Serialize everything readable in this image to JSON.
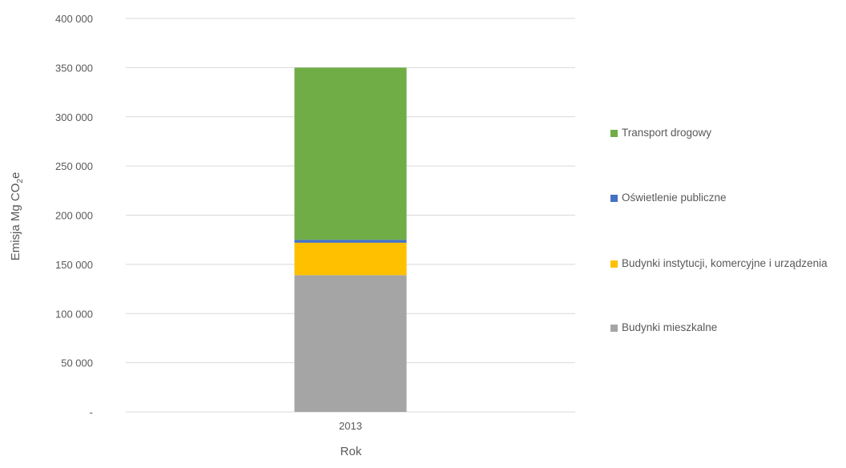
{
  "chart_data": {
    "type": "bar",
    "stacked": true,
    "categories": [
      "2013"
    ],
    "xlabel": "Rok",
    "ylabel_main": "Emisja Mg CO",
    "ylabel_sub": "2",
    "ylabel_end": "e",
    "ylim": [
      0,
      400000
    ],
    "yticks": [
      0,
      50000,
      100000,
      150000,
      200000,
      250000,
      300000,
      350000,
      400000
    ],
    "ytick_labels": [
      "-",
      "50 000",
      "100 000",
      "150 000",
      "200 000",
      "250 000",
      "300 000",
      "350 000",
      "400 000"
    ],
    "grid": true,
    "legend_position": "right",
    "series": [
      {
        "name": "Budynki mieszkalne",
        "values": [
          139000
        ],
        "color": "#a5a5a5"
      },
      {
        "name": "Budynki instytucji, komercyjne i urządzenia",
        "values": [
          33000
        ],
        "color": "#ffc000"
      },
      {
        "name": "Oświetlenie publiczne",
        "values": [
          3000
        ],
        "color": "#4472c4"
      },
      {
        "name": "Transport drogowy",
        "values": [
          175000
        ],
        "color": "#70ad47"
      }
    ]
  }
}
